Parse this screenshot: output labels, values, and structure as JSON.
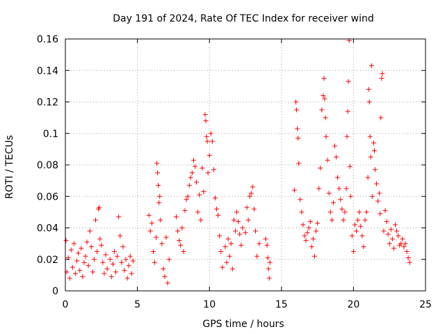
{
  "chart_data": {
    "type": "scatter",
    "title": "Day 191 of 2024, Rate Of TEC Index for receiver wind",
    "xlabel": "GPS time / hours",
    "ylabel": "ROTI / TECUs",
    "xlim": [
      0,
      25
    ],
    "ylim": [
      0,
      0.16
    ],
    "x_ticks": [
      0,
      5,
      10,
      15,
      20,
      25
    ],
    "x_tick_labels": [
      "0",
      "5",
      "10",
      "15",
      "20",
      "25"
    ],
    "y_ticks": [
      0,
      0.02,
      0.04,
      0.06,
      0.08,
      0.1,
      0.12,
      0.14,
      0.16
    ],
    "y_tick_labels": [
      "0",
      "0.02",
      "0.04",
      "0.06",
      "0.08",
      "0.1",
      "0.12",
      "0.14",
      "0.16"
    ],
    "grid": true,
    "legend": "none",
    "marker": "+",
    "color": "#ff0000",
    "series": [
      {
        "points": [
          [
            0.05,
            0.032
          ],
          [
            0.1,
            0.012
          ],
          [
            0.2,
            0.021
          ],
          [
            0.3,
            0.008
          ],
          [
            0.4,
            0.026
          ],
          [
            0.5,
            0.015
          ],
          [
            0.6,
            0.03
          ],
          [
            0.7,
            0.011
          ],
          [
            0.8,
            0.019
          ],
          [
            0.9,
            0.024
          ],
          [
            1.0,
            0.013
          ],
          [
            1.1,
            0.027
          ],
          [
            1.2,
            0.009
          ],
          [
            1.3,
            0.018
          ],
          [
            1.4,
            0.022
          ],
          [
            1.5,
            0.031
          ],
          [
            1.6,
            0.016
          ],
          [
            1.7,
            0.038
          ],
          [
            1.8,
            0.028
          ],
          [
            1.9,
            0.012
          ],
          [
            2.0,
            0.02
          ],
          [
            2.1,
            0.045
          ],
          [
            2.2,
            0.025
          ],
          [
            2.3,
            0.052
          ],
          [
            2.35,
            0.053
          ],
          [
            2.4,
            0.033
          ],
          [
            2.5,
            0.029
          ],
          [
            2.6,
            0.018
          ],
          [
            2.7,
            0.011
          ],
          [
            2.8,
            0.023
          ],
          [
            2.9,
            0.014
          ],
          [
            3.1,
            0.02
          ],
          [
            3.2,
            0.009
          ],
          [
            3.3,
            0.017
          ],
          [
            3.4,
            0.025
          ],
          [
            3.5,
            0.012
          ],
          [
            3.6,
            0.022
          ],
          [
            3.7,
            0.047
          ],
          [
            3.8,
            0.035
          ],
          [
            3.9,
            0.018
          ],
          [
            4.0,
            0.028
          ],
          [
            4.1,
            0.013
          ],
          [
            4.2,
            0.02
          ],
          [
            4.3,
            0.008
          ],
          [
            4.4,
            0.016
          ],
          [
            4.5,
            0.022
          ],
          [
            4.6,
            0.011
          ],
          [
            4.7,
            0.019
          ],
          [
            5.8,
            0.048
          ],
          [
            5.9,
            0.038
          ],
          [
            6.0,
            0.043
          ],
          [
            6.1,
            0.025
          ],
          [
            6.2,
            0.018
          ],
          [
            6.3,
            0.034
          ],
          [
            6.35,
            0.081
          ],
          [
            6.4,
            0.075
          ],
          [
            6.45,
            0.067
          ],
          [
            6.5,
            0.056
          ],
          [
            6.55,
            0.06
          ],
          [
            6.6,
            0.045
          ],
          [
            6.7,
            0.03
          ],
          [
            6.8,
            0.014
          ],
          [
            6.9,
            0.009
          ],
          [
            7.0,
            0.034
          ],
          [
            7.1,
            0.005
          ],
          [
            7.2,
            0.02
          ],
          [
            7.7,
            0.047
          ],
          [
            7.8,
            0.038
          ],
          [
            7.9,
            0.032
          ],
          [
            8.0,
            0.029
          ],
          [
            8.1,
            0.04
          ],
          [
            8.2,
            0.025
          ],
          [
            8.3,
            0.051
          ],
          [
            8.4,
            0.058
          ],
          [
            8.5,
            0.06
          ],
          [
            8.6,
            0.067
          ],
          [
            8.7,
            0.072
          ],
          [
            8.8,
            0.075
          ],
          [
            8.9,
            0.083
          ],
          [
            9.0,
            0.079
          ],
          [
            9.1,
            0.069
          ],
          [
            9.2,
            0.05
          ],
          [
            9.3,
            0.061
          ],
          [
            9.4,
            0.045
          ],
          [
            9.5,
            0.078
          ],
          [
            9.6,
            0.063
          ],
          [
            9.7,
            0.112
          ],
          [
            9.75,
            0.108
          ],
          [
            9.8,
            0.098
          ],
          [
            9.85,
            0.095
          ],
          [
            9.9,
            0.075
          ],
          [
            10.0,
            0.086
          ],
          [
            10.1,
            0.1
          ],
          [
            10.2,
            0.095
          ],
          [
            10.3,
            0.077
          ],
          [
            10.4,
            0.059
          ],
          [
            10.5,
            0.052
          ],
          [
            10.6,
            0.048
          ],
          [
            10.7,
            0.035
          ],
          [
            10.8,
            0.025
          ],
          [
            10.9,
            0.015
          ],
          [
            11.1,
            0.028
          ],
          [
            11.2,
            0.018
          ],
          [
            11.3,
            0.033
          ],
          [
            11.4,
            0.022
          ],
          [
            11.5,
            0.03
          ],
          [
            11.6,
            0.014
          ],
          [
            11.7,
            0.045
          ],
          [
            11.8,
            0.038
          ],
          [
            11.9,
            0.05
          ],
          [
            12.0,
            0.044
          ],
          [
            12.1,
            0.036
          ],
          [
            12.2,
            0.029
          ],
          [
            12.3,
            0.04
          ],
          [
            12.5,
            0.037
          ],
          [
            12.6,
            0.053
          ],
          [
            12.7,
            0.045
          ],
          [
            12.8,
            0.06
          ],
          [
            12.9,
            0.062
          ],
          [
            13.0,
            0.066
          ],
          [
            13.1,
            0.052
          ],
          [
            13.2,
            0.038
          ],
          [
            13.3,
            0.022
          ],
          [
            13.45,
            0.03
          ],
          [
            13.9,
            0.033
          ],
          [
            14.0,
            0.029
          ],
          [
            14.05,
            0.021
          ],
          [
            14.1,
            0.014
          ],
          [
            14.15,
            0.008
          ],
          [
            14.2,
            0.018
          ],
          [
            15.9,
            0.064
          ],
          [
            16.0,
            0.12
          ],
          [
            16.05,
            0.115
          ],
          [
            16.1,
            0.103
          ],
          [
            16.15,
            0.097
          ],
          [
            16.2,
            0.081
          ],
          [
            16.3,
            0.058
          ],
          [
            16.4,
            0.05
          ],
          [
            16.5,
            0.042
          ],
          [
            16.6,
            0.035
          ],
          [
            16.7,
            0.032
          ],
          [
            16.8,
            0.037
          ],
          [
            16.9,
            0.04
          ],
          [
            17.0,
            0.044
          ],
          [
            17.1,
            0.028
          ],
          [
            17.2,
            0.033
          ],
          [
            17.3,
            0.022
          ],
          [
            17.4,
            0.038
          ],
          [
            17.5,
            0.043
          ],
          [
            17.6,
            0.065
          ],
          [
            17.7,
            0.078
          ],
          [
            17.8,
            0.115
          ],
          [
            17.9,
            0.124
          ],
          [
            17.95,
            0.135
          ],
          [
            18.0,
            0.122
          ],
          [
            18.05,
            0.11
          ],
          [
            18.1,
            0.098
          ],
          [
            18.2,
            0.083
          ],
          [
            18.3,
            0.062
          ],
          [
            18.4,
            0.05
          ],
          [
            18.5,
            0.045
          ],
          [
            18.6,
            0.056
          ],
          [
            18.7,
            0.092
          ],
          [
            18.8,
            0.085
          ],
          [
            18.9,
            0.072
          ],
          [
            19.0,
            0.065
          ],
          [
            19.1,
            0.058
          ],
          [
            19.2,
            0.052
          ],
          [
            19.3,
            0.045
          ],
          [
            19.4,
            0.05
          ],
          [
            19.5,
            0.065
          ],
          [
            19.55,
            0.098
          ],
          [
            19.6,
            0.114
          ],
          [
            19.65,
            0.133
          ],
          [
            19.7,
            0.159
          ],
          [
            19.75,
            0.079
          ],
          [
            19.8,
            0.06
          ],
          [
            19.9,
            0.035
          ],
          [
            20.0,
            0.025
          ],
          [
            20.1,
            0.042
          ],
          [
            20.2,
            0.038
          ],
          [
            20.3,
            0.045
          ],
          [
            20.4,
            0.05
          ],
          [
            20.5,
            0.041
          ],
          [
            20.6,
            0.035
          ],
          [
            20.7,
            0.028
          ],
          [
            20.8,
            0.045
          ],
          [
            20.9,
            0.05
          ],
          [
            21.0,
            0.072
          ],
          [
            21.05,
            0.128
          ],
          [
            21.1,
            0.12
          ],
          [
            21.15,
            0.098
          ],
          [
            21.2,
            0.085
          ],
          [
            21.25,
            0.143
          ],
          [
            21.3,
            0.06
          ],
          [
            21.4,
            0.094
          ],
          [
            21.45,
            0.089
          ],
          [
            21.5,
            0.077
          ],
          [
            21.6,
            0.068
          ],
          [
            21.7,
            0.057
          ],
          [
            21.8,
            0.062
          ],
          [
            21.85,
            0.049
          ],
          [
            21.9,
            0.11
          ],
          [
            21.95,
            0.135
          ],
          [
            22.0,
            0.138
          ],
          [
            22.1,
            0.038
          ],
          [
            22.2,
            0.051
          ],
          [
            22.3,
            0.044
          ],
          [
            22.4,
            0.036
          ],
          [
            22.5,
            0.03
          ],
          [
            22.6,
            0.039
          ],
          [
            22.7,
            0.033
          ],
          [
            22.8,
            0.027
          ],
          [
            22.9,
            0.042
          ],
          [
            23.0,
            0.038
          ],
          [
            23.1,
            0.035
          ],
          [
            23.2,
            0.029
          ],
          [
            23.3,
            0.03
          ],
          [
            23.4,
            0.033
          ],
          [
            23.5,
            0.028
          ],
          [
            23.6,
            0.03
          ],
          [
            23.7,
            0.025
          ],
          [
            23.8,
            0.021
          ],
          [
            23.9,
            0.018
          ]
        ]
      }
    ]
  }
}
